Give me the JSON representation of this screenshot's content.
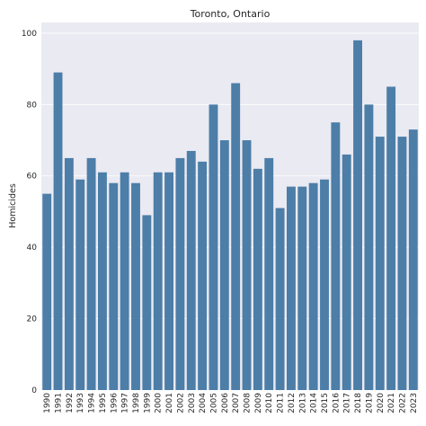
{
  "chart_data": {
    "type": "bar",
    "title": "Toronto, Ontario",
    "xlabel": "",
    "ylabel": "Homicides",
    "ylim": [
      0,
      103
    ],
    "yticks": [
      0,
      20,
      40,
      60,
      80,
      100
    ],
    "grid": true,
    "categories": [
      "1990",
      "1991",
      "1992",
      "1993",
      "1994",
      "1995",
      "1996",
      "1997",
      "1998",
      "1999",
      "2000",
      "2001",
      "2002",
      "2003",
      "2004",
      "2005",
      "2006",
      "2007",
      "2008",
      "2009",
      "2010",
      "2011",
      "2012",
      "2013",
      "2014",
      "2015",
      "2016",
      "2017",
      "2018",
      "2019",
      "2020",
      "2021",
      "2022",
      "2023"
    ],
    "values": [
      55,
      89,
      65,
      59,
      65,
      61,
      58,
      61,
      58,
      49,
      61,
      61,
      65,
      67,
      64,
      80,
      70,
      86,
      70,
      62,
      65,
      51,
      57,
      57,
      58,
      59,
      75,
      66,
      98,
      80,
      71,
      85,
      71,
      73
    ]
  },
  "colors": {
    "bar": "#4c7ea8",
    "plot_background": "#eaeaf2",
    "grid": "#ffffff",
    "text": "#262626"
  }
}
